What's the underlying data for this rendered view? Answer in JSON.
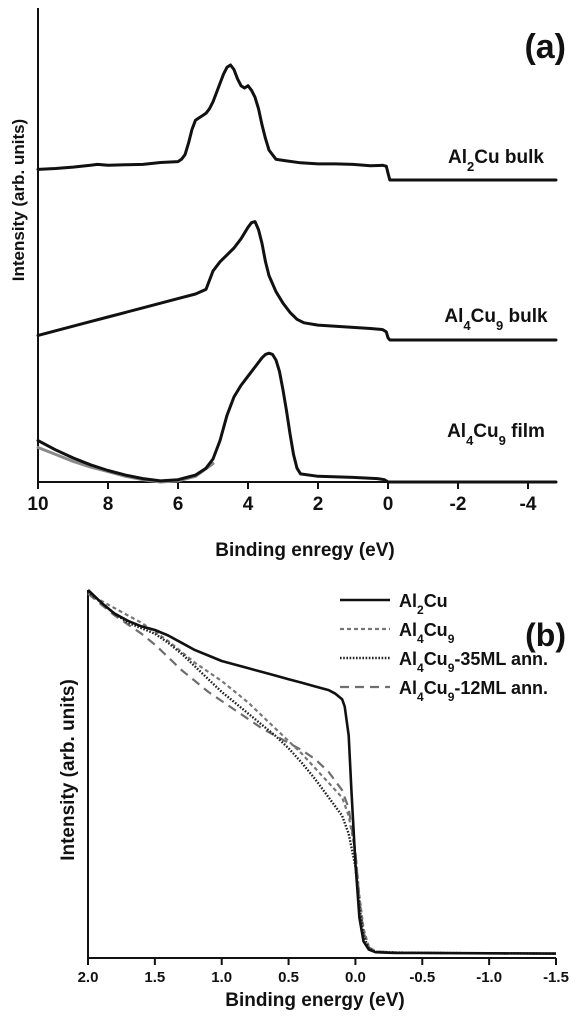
{
  "chart_data": [
    {
      "type": "line",
      "panel_label": "(a)",
      "xlabel": "Binding enregy (eV)",
      "ylabel": "Intensity (arb. units)",
      "xlim": [
        10,
        -4.8
      ],
      "x_reversed": true,
      "xticks": [
        10,
        8,
        6,
        4,
        2,
        0,
        -2,
        -4
      ],
      "xtick_labels": [
        "10",
        "8",
        "6",
        "4",
        "2",
        "0",
        "-2",
        "-4"
      ],
      "yticks": false,
      "grid": false,
      "offset_traces": true,
      "series": [
        {
          "name_parts": [
            [
              "Al",
              ""
            ],
            [
              "2",
              "sub"
            ],
            [
              "Cu bulk",
              ""
            ]
          ],
          "color": "#111111",
          "dash": "solid",
          "width": 3,
          "baseline": 4,
          "label_x": 1.9,
          "label_y": 6,
          "x": [
            10,
            9.5,
            9,
            8.5,
            8.3,
            8,
            7.5,
            7,
            6.5,
            6,
            5.9,
            5.8,
            5.7,
            5.6,
            5.5,
            5.4,
            5.3,
            5.2,
            5.1,
            5.0,
            4.9,
            4.8,
            4.7,
            4.6,
            4.5,
            4.4,
            4.3,
            4.2,
            4.1,
            4.0,
            3.9,
            3.8,
            3.7,
            3.6,
            3.5,
            3.4,
            3.2,
            3.0,
            2.5,
            2.0,
            1.5,
            1.0,
            0.5,
            0.15,
            0.05,
            0.0,
            -0.05,
            -0.1,
            -1,
            -2,
            -3,
            -4,
            -4.8
          ],
          "y": [
            8.6,
            9.0,
            9.6,
            10.4,
            10.8,
            10.4,
            10.6,
            10.8,
            11.6,
            12.0,
            13.0,
            15.0,
            20.0,
            26.0,
            30.0,
            31.0,
            32.0,
            33.0,
            35.0,
            38.0,
            42.0,
            46.0,
            50.0,
            53.0,
            54.0,
            52.0,
            48.0,
            45.0,
            44.0,
            45.0,
            43.0,
            40.0,
            35.0,
            28.0,
            22.0,
            17.0,
            13.0,
            12.5,
            11.5,
            11.0,
            11.0,
            10.8,
            10.2,
            10.4,
            10.0,
            7.0,
            4.0,
            4.0,
            4.0,
            4.0,
            4.0,
            4.0,
            4.0
          ]
        },
        {
          "name_parts": [
            [
              "Al",
              ""
            ],
            [
              "4",
              "sub"
            ],
            [
              "Cu",
              ""
            ],
            [
              "9",
              "sub"
            ],
            [
              " bulk",
              ""
            ]
          ],
          "color": "#111111",
          "dash": "solid",
          "width": 3,
          "baseline": 4,
          "label_x": 1.9,
          "label_y": 5,
          "x": [
            10,
            9.5,
            9,
            8.5,
            8,
            7.5,
            7,
            6.5,
            6,
            5.5,
            5.2,
            5.1,
            5.0,
            4.8,
            4.6,
            4.4,
            4.2,
            4.0,
            3.9,
            3.8,
            3.7,
            3.6,
            3.5,
            3.4,
            3.2,
            3.0,
            2.8,
            2.6,
            2.4,
            2.0,
            1.5,
            1.0,
            0.5,
            0.15,
            0.05,
            0.0,
            -0.05,
            -1,
            -2,
            -3,
            -4,
            -4.8
          ],
          "y": [
            6.0,
            8.0,
            10.0,
            12.0,
            14.0,
            16.0,
            18.0,
            20.0,
            22.0,
            24.0,
            26.0,
            30.0,
            34.0,
            38.0,
            41.0,
            44.0,
            48.0,
            53.0,
            55.0,
            55.5,
            52.0,
            46.0,
            38.0,
            32.0,
            25.0,
            20.0,
            16.0,
            13.0,
            11.5,
            10.5,
            10.0,
            9.5,
            9.0,
            8.5,
            7.5,
            5.0,
            4.0,
            4.0,
            4.0,
            4.0,
            4.0,
            4.0
          ]
        },
        {
          "name_parts": [
            [
              "Al",
              ""
            ],
            [
              "4",
              "sub"
            ],
            [
              "Cu",
              ""
            ],
            [
              "9",
              "sub"
            ],
            [
              " film",
              ""
            ]
          ],
          "color": "#111111",
          "dash": "solid",
          "width": 3,
          "baseline": 4,
          "label_x": 1.9,
          "label_y": 62,
          "x": [
            10,
            9.5,
            9,
            8.5,
            8,
            7.5,
            7,
            6.5,
            6,
            5.5,
            5.2,
            5.0,
            4.8,
            4.6,
            4.4,
            4.2,
            4.0,
            3.8,
            3.6,
            3.5,
            3.4,
            3.3,
            3.2,
            3.1,
            3.0,
            2.9,
            2.8,
            2.7,
            2.6,
            2.5,
            2.0,
            1.0,
            0.3,
            0.1,
            0.0,
            -0.05,
            -1,
            -2,
            -3,
            -4,
            -4.8
          ],
          "y": [
            22.0,
            18.0,
            14.5,
            11.5,
            9.0,
            7.0,
            5.5,
            4.5,
            5.0,
            7.0,
            10.0,
            14.0,
            22.0,
            33.0,
            41.0,
            46.0,
            50.0,
            54.0,
            58.0,
            59.5,
            60.0,
            59.5,
            57.0,
            52.0,
            44.0,
            35.0,
            25.0,
            16.0,
            10.0,
            7.5,
            6.5,
            6.0,
            5.5,
            5.0,
            4.0,
            4.0,
            4.0,
            4.0,
            4.0,
            4.0,
            4.0
          ]
        },
        {
          "name_parts": [],
          "color": "#8a8a8a",
          "dash": "solid",
          "width": 3,
          "baseline": 4,
          "x": [
            10,
            9.5,
            9,
            8.5,
            8,
            7.5,
            7,
            6.5,
            6,
            5.5,
            5.0
          ],
          "y": [
            19.0,
            16.0,
            13.0,
            10.5,
            8.5,
            6.5,
            5.0,
            4.0,
            4.5,
            6.5,
            12.0
          ]
        }
      ]
    },
    {
      "type": "line",
      "panel_label": "(b)",
      "xlabel": "Binding energy (eV)",
      "ylabel": "Intensity (arb. units)",
      "xlim": [
        2.0,
        -1.5
      ],
      "x_reversed": true,
      "xticks": [
        2.0,
        1.5,
        1.0,
        0.5,
        0.0,
        -0.5,
        -1.0,
        -1.5
      ],
      "xtick_labels": [
        "2.0",
        "1.5",
        "1.0",
        "0.5",
        "0.0",
        "-0.5",
        "-1.0",
        "-1.5"
      ],
      "yticks": false,
      "grid": false,
      "legend_position": "top-right",
      "series": [
        {
          "name_parts": [
            [
              "Al",
              ""
            ],
            [
              "2",
              "sub"
            ],
            [
              "Cu",
              ""
            ]
          ],
          "color": "#111111",
          "dash": "solid",
          "width": 2.6,
          "x": [
            2.0,
            1.9,
            1.8,
            1.7,
            1.6,
            1.5,
            1.4,
            1.3,
            1.2,
            1.1,
            1.0,
            0.9,
            0.8,
            0.7,
            0.6,
            0.5,
            0.4,
            0.3,
            0.2,
            0.15,
            0.1,
            0.08,
            0.05,
            0.03,
            0.0,
            -0.03,
            -0.06,
            -0.1,
            -0.15,
            -0.3,
            -0.5,
            -1.0,
            -1.5
          ],
          "y": [
            1.0,
            0.965,
            0.935,
            0.915,
            0.9,
            0.89,
            0.875,
            0.855,
            0.835,
            0.82,
            0.805,
            0.795,
            0.785,
            0.775,
            0.765,
            0.755,
            0.745,
            0.735,
            0.725,
            0.715,
            0.7,
            0.68,
            0.6,
            0.45,
            0.25,
            0.1,
            0.035,
            0.012,
            0.005,
            0.003,
            0.003,
            0.002,
            0.001
          ]
        },
        {
          "name_parts": [
            [
              "Al",
              ""
            ],
            [
              "4",
              "sub"
            ],
            [
              "Cu",
              ""
            ],
            [
              "9",
              "sub"
            ]
          ],
          "color": "#777777",
          "dash": "4,3",
          "width": 2.2,
          "x": [
            2.0,
            1.9,
            1.8,
            1.7,
            1.6,
            1.5,
            1.4,
            1.3,
            1.2,
            1.1,
            1.0,
            0.9,
            0.8,
            0.7,
            0.6,
            0.5,
            0.4,
            0.3,
            0.2,
            0.1,
            0.05,
            0.0,
            -0.03,
            -0.06,
            -0.1,
            -0.15,
            -0.3,
            -0.5,
            -1.0,
            -1.5
          ],
          "y": [
            0.99,
            0.97,
            0.95,
            0.93,
            0.91,
            0.885,
            0.86,
            0.83,
            0.8,
            0.775,
            0.75,
            0.72,
            0.69,
            0.655,
            0.62,
            0.585,
            0.55,
            0.51,
            0.47,
            0.43,
            0.38,
            0.28,
            0.16,
            0.07,
            0.02,
            0.007,
            0.004,
            0.003,
            0.002,
            0.001
          ]
        },
        {
          "name_parts": [
            [
              "Al",
              ""
            ],
            [
              "4",
              "sub"
            ],
            [
              "Cu",
              ""
            ],
            [
              "9",
              "sub"
            ],
            [
              "-35ML ann.",
              ""
            ]
          ],
          "color": "#222222",
          "dash": "1.6,1.6",
          "width": 2.4,
          "x": [
            2.0,
            1.9,
            1.8,
            1.7,
            1.6,
            1.5,
            1.4,
            1.3,
            1.2,
            1.1,
            1.0,
            0.9,
            0.8,
            0.7,
            0.6,
            0.5,
            0.4,
            0.3,
            0.2,
            0.1,
            0.05,
            0.0,
            -0.03,
            -0.06,
            -0.1,
            -0.15,
            -0.3,
            -0.5,
            -1.0,
            -1.5
          ],
          "y": [
            0.995,
            0.965,
            0.935,
            0.91,
            0.895,
            0.88,
            0.855,
            0.825,
            0.79,
            0.755,
            0.72,
            0.69,
            0.66,
            0.63,
            0.6,
            0.565,
            0.525,
            0.48,
            0.43,
            0.38,
            0.33,
            0.24,
            0.13,
            0.05,
            0.015,
            0.006,
            0.004,
            0.003,
            0.002,
            0.001
          ]
        },
        {
          "name_parts": [
            [
              "Al",
              ""
            ],
            [
              "4",
              "sub"
            ],
            [
              "Cu",
              ""
            ],
            [
              "9",
              "sub"
            ],
            [
              "-12ML ann.",
              ""
            ]
          ],
          "color": "#6e6e6e",
          "dash": "9,6",
          "width": 2.2,
          "x": [
            2.0,
            1.9,
            1.8,
            1.7,
            1.6,
            1.5,
            1.4,
            1.3,
            1.2,
            1.1,
            1.0,
            0.9,
            0.8,
            0.7,
            0.6,
            0.5,
            0.4,
            0.3,
            0.2,
            0.1,
            0.05,
            0.0,
            -0.03,
            -0.06,
            -0.1,
            -0.15,
            -0.3,
            -0.5,
            -1.0,
            -1.5
          ],
          "y": [
            0.99,
            0.96,
            0.93,
            0.905,
            0.88,
            0.85,
            0.815,
            0.78,
            0.75,
            0.72,
            0.695,
            0.67,
            0.645,
            0.62,
            0.6,
            0.58,
            0.56,
            0.535,
            0.5,
            0.45,
            0.4,
            0.28,
            0.15,
            0.06,
            0.018,
            0.007,
            0.004,
            0.003,
            0.002,
            0.001
          ]
        }
      ]
    }
  ]
}
